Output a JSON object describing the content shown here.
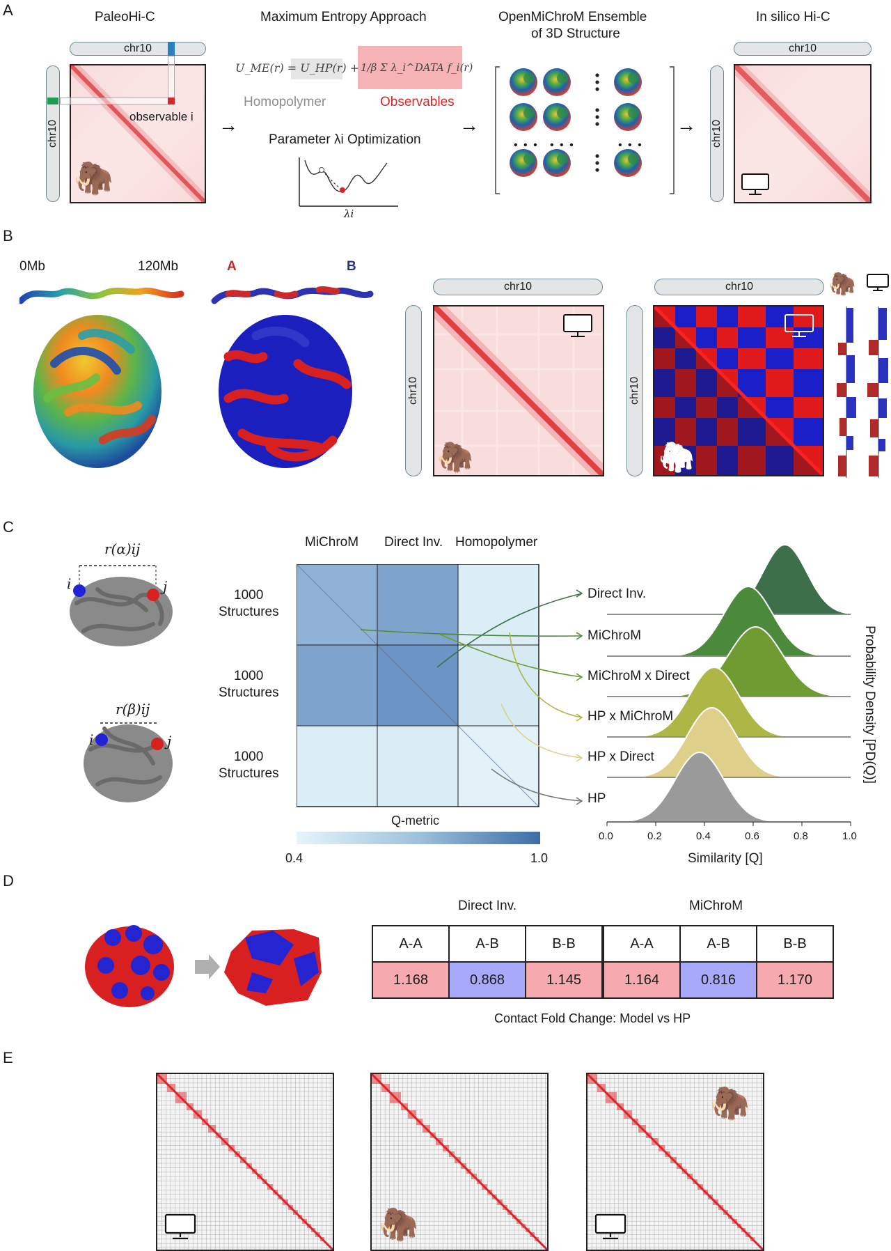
{
  "panels": {
    "a": "A",
    "b": "B",
    "c": "C",
    "d": "D",
    "e": "E"
  },
  "panelA": {
    "h1": "PaleoHi-C",
    "h2": "Maximum Entropy Approach",
    "h3a": "OpenMiChroM Ensemble",
    "h3b": "of 3D Structure",
    "h4": "In silico Hi-C",
    "chr": "chr10",
    "observable": "observable i",
    "equation_lhs": "U_ME(r) = U_HP(r) +",
    "equation_rhs": "1/β Σ λ_i^DATA f_i(r)",
    "homopolymer": "Homopolymer",
    "observables": "Observables",
    "optimization": "Parameter λi Optimization",
    "lambda": "λi",
    "ellipsis": "• • •"
  },
  "panelB": {
    "start": "0Mb",
    "end": "120Mb",
    "a": "A",
    "b": "B",
    "chr": "chr10"
  },
  "panelC": {
    "r_alpha": "r(α)ij",
    "r_beta": "r(β)ij",
    "i": "i",
    "j": "j",
    "col1": "MiChroM",
    "col2": "Direct Inv.",
    "col3": "Homopolymer",
    "row": [
      "1000",
      "Structures"
    ],
    "colorbar_label": "Q-metric",
    "colorbar_min": "0.4",
    "colorbar_max": "1.0",
    "xlabel": "Similarity [Q]",
    "ylabel": "Probability Density [PD(Q)]",
    "xticks": [
      "0.0",
      "0.2",
      "0.4",
      "0.6",
      "0.8",
      "1.0"
    ],
    "colors": {
      "dark": "#3d6f4a",
      "mid": "#4b8a3a",
      "green": "#6e9b32",
      "olive": "#aeb645",
      "sand": "#ded08a",
      "grey": "#9a9a9a"
    }
  },
  "chart_data": {
    "type": "area",
    "xlabel": "Similarity [Q]",
    "ylabel": "Probability Density [PD(Q)]",
    "xlim": [
      0.0,
      1.0
    ],
    "series": [
      {
        "name": "Direct Inv.",
        "peak": 0.73,
        "width": 0.09
      },
      {
        "name": "MiChroM",
        "peak": 0.58,
        "width": 0.1
      },
      {
        "name": "MiChroM x Direct",
        "peak": 0.61,
        "width": 0.11
      },
      {
        "name": "HP x MiChroM",
        "peak": 0.44,
        "width": 0.1
      },
      {
        "name": "HP x Direct",
        "peak": 0.43,
        "width": 0.1
      },
      {
        "name": "HP",
        "peak": 0.38,
        "width": 0.1
      }
    ]
  },
  "panelD": {
    "group1": "Direct Inv.",
    "group2": "MiChroM",
    "headers": [
      "A-A",
      "A-B",
      "B-B",
      "A-A",
      "A-B",
      "B-B"
    ],
    "values": [
      "1.168",
      "0.868",
      "1.145",
      "1.164",
      "0.816",
      "1.170"
    ],
    "caption": "Contact Fold Change: Model vs HP"
  }
}
